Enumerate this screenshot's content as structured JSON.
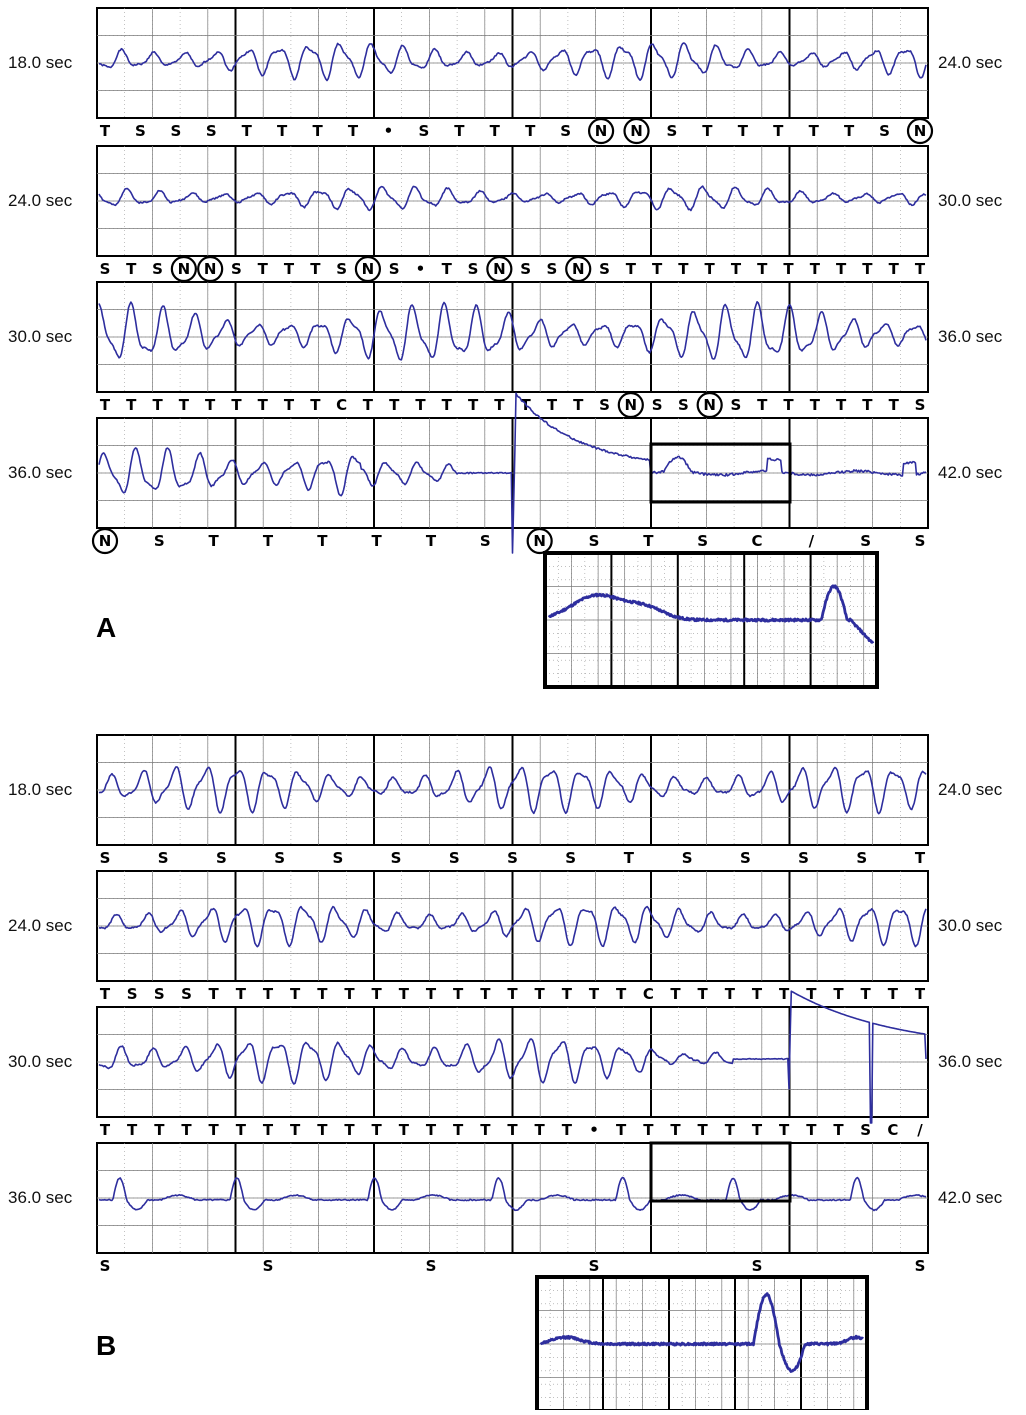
{
  "figure": {
    "panel_labels": [
      "A",
      "B"
    ]
  },
  "colors": {
    "trace": "#2e2e9e",
    "grid_major": "#000000",
    "grid_minor": "#9a9a9a",
    "box": "#000000"
  },
  "chart_data": [
    {
      "type": "line",
      "panel": "A",
      "strips": [
        {
          "start_label": "18.0 sec",
          "end_label": "24.0 sec",
          "x_range_sec": [
            18.0,
            24.0
          ],
          "pattern": "vf",
          "amp": 0.35,
          "freq": 4.4,
          "seed": 1,
          "markers": [
            "T",
            "S",
            "S",
            "S",
            "T",
            "T",
            "T",
            "T",
            "•",
            "S",
            "T",
            "T",
            "T",
            "S",
            "N",
            "N",
            "S",
            "T",
            "T",
            "T",
            "T",
            "T",
            "S",
            "N"
          ],
          "circled": [
            14,
            15,
            23
          ]
        },
        {
          "start_label": "24.0 sec",
          "end_label": "30.0 sec",
          "x_range_sec": [
            24.0,
            30.0
          ],
          "pattern": "vf",
          "amp": 0.22,
          "freq": 4.3,
          "seed": 2,
          "markers": [
            "S",
            "T",
            "S",
            "N",
            "N",
            "S",
            "T",
            "T",
            "T",
            "S",
            "N",
            "S",
            "•",
            "T",
            "S",
            "N",
            "S",
            "S",
            "N",
            "S",
            "T",
            "T",
            "T",
            "T",
            "T",
            "T",
            "T",
            "T",
            "T",
            "T",
            "T",
            "T"
          ],
          "circled": [
            3,
            4,
            10,
            15,
            18
          ]
        },
        {
          "start_label": "30.0 sec",
          "end_label": "36.0 sec",
          "x_range_sec": [
            30.0,
            36.0
          ],
          "pattern": "vf",
          "amp": 0.55,
          "freq": 4.4,
          "seed": 3,
          "markers": [
            "T",
            "T",
            "T",
            "T",
            "T",
            "T",
            "T",
            "T",
            "T",
            "C",
            "T",
            "T",
            "T",
            "T",
            "T",
            "T",
            "T",
            "T",
            "T",
            "S",
            "N",
            "S",
            "S",
            "N",
            "S",
            "T",
            "T",
            "T",
            "T",
            "T",
            "T",
            "S"
          ],
          "circled": [
            20,
            23
          ]
        },
        {
          "start_label": "36.0 sec",
          "end_label": "42.0 sec",
          "x_range_sec": [
            36.0,
            42.0
          ],
          "pattern": "shockA",
          "amp": 0.45,
          "freq": 4.4,
          "seed": 4,
          "markers": [
            "N",
            "S",
            "T",
            "T",
            "T",
            "T",
            "T",
            "S",
            "N",
            "S",
            "T",
            "S",
            "C",
            "/",
            "S",
            "S"
          ],
          "circled": [
            0,
            8
          ]
        }
      ],
      "inset": {
        "pattern": "insetA"
      }
    },
    {
      "type": "line",
      "panel": "B",
      "strips": [
        {
          "start_label": "18.0 sec",
          "end_label": "24.0 sec",
          "x_range_sec": [
            18.0,
            24.0
          ],
          "pattern": "vf",
          "amp": 0.45,
          "freq": 4.4,
          "seed": 5,
          "markers": [
            "S",
            "S",
            "S",
            "S",
            "S",
            "S",
            "S",
            "S",
            "S",
            "T",
            "S",
            "S",
            "S",
            "S",
            "T"
          ],
          "circled": []
        },
        {
          "start_label": "24.0 sec",
          "end_label": "30.0 sec",
          "x_range_sec": [
            24.0,
            30.0
          ],
          "pattern": "vf",
          "amp": 0.4,
          "freq": 4.4,
          "seed": 6,
          "markers": [
            "T",
            "S",
            "S",
            "S",
            "T",
            "T",
            "T",
            "T",
            "T",
            "T",
            "T",
            "T",
            "T",
            "T",
            "T",
            "T",
            "T",
            "T",
            "T",
            "T",
            "C",
            "T",
            "T",
            "T",
            "T",
            "T",
            "T",
            "T",
            "T",
            "T",
            "T"
          ],
          "circled": []
        },
        {
          "start_label": "30.0 sec",
          "end_label": "36.0 sec",
          "x_range_sec": [
            30.0,
            36.0
          ],
          "pattern": "shockB",
          "amp": 0.45,
          "freq": 4.4,
          "seed": 7,
          "markers": [
            "T",
            "T",
            "T",
            "T",
            "T",
            "T",
            "T",
            "T",
            "T",
            "T",
            "T",
            "T",
            "T",
            "T",
            "T",
            "T",
            "T",
            "T",
            "•",
            "T",
            "T",
            "T",
            "T",
            "T",
            "T",
            "T",
            "T",
            "T",
            "S",
            "C",
            "/"
          ],
          "circled": []
        },
        {
          "start_label": "36.0 sec",
          "end_label": "42.0 sec",
          "x_range_sec": [
            36.0,
            42.0
          ],
          "pattern": "rhythmB",
          "amp": 0.4,
          "freq": 1.0,
          "seed": 8,
          "markers": [
            "S",
            "S",
            "S",
            "S",
            "S",
            "S"
          ],
          "circled": []
        }
      ],
      "inset": {
        "pattern": "insetB"
      }
    }
  ]
}
